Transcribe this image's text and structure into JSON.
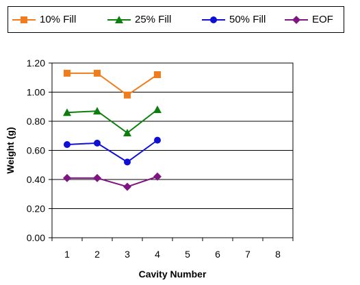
{
  "chart_data": {
    "type": "line",
    "title": "",
    "xlabel": "Cavity Number",
    "ylabel": "Weight (g)",
    "x_categories": [
      "1",
      "2",
      "3",
      "4",
      "5",
      "6",
      "7",
      "8"
    ],
    "ylim": [
      0,
      1.2
    ],
    "y_ticks": [
      "0.00",
      "0.20",
      "0.40",
      "0.60",
      "0.80",
      "1.00",
      "1.20"
    ],
    "y_tick_values": [
      0,
      0.2,
      0.4,
      0.6,
      0.8,
      1.0,
      1.2
    ],
    "grid": "horizontal",
    "legend_position": "top",
    "series": [
      {
        "name": "10% Fill",
        "color": "#f07c1c",
        "marker": "square",
        "x": [
          1,
          2,
          3,
          4
        ],
        "values": [
          1.13,
          1.13,
          0.98,
          1.12
        ]
      },
      {
        "name": "25% Fill",
        "color": "#0a7f0a",
        "marker": "triangle",
        "x": [
          1,
          2,
          3,
          4
        ],
        "values": [
          0.86,
          0.87,
          0.72,
          0.88
        ]
      },
      {
        "name": "50% Fill",
        "color": "#0f0fd8",
        "marker": "circle",
        "x": [
          1,
          2,
          3,
          4
        ],
        "values": [
          0.64,
          0.65,
          0.52,
          0.67
        ]
      },
      {
        "name": "EOF",
        "color": "#7f1580",
        "marker": "diamond",
        "x": [
          1,
          2,
          3,
          4
        ],
        "values": [
          0.41,
          0.41,
          0.35,
          0.42
        ]
      }
    ]
  }
}
